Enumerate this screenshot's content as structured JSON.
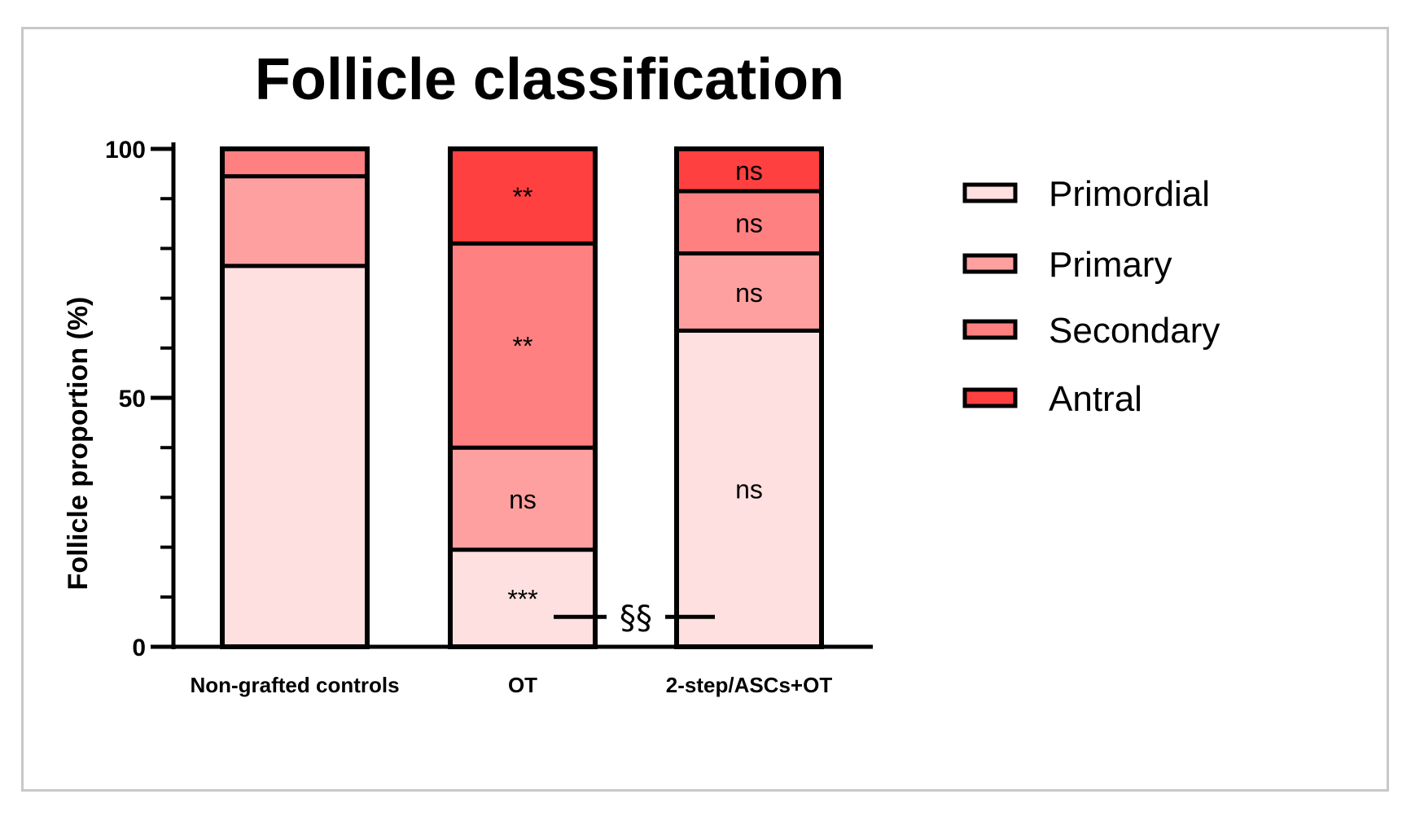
{
  "chart_data": {
    "type": "bar",
    "stacked": true,
    "title": "Follicle classification",
    "xlabel": "",
    "ylabel": "Follicle proportion (%)",
    "ylim": [
      0,
      100
    ],
    "yticks_major": [
      "0",
      "50",
      "100"
    ],
    "yticks_major_values": [
      0,
      50,
      100
    ],
    "yticks_minor_values": [
      10,
      20,
      30,
      40,
      60,
      70,
      80,
      90
    ],
    "grid": false,
    "legend_position": "right",
    "categories": [
      "Non-grafted controls",
      "OT",
      "2-step/ASCs+OT"
    ],
    "series": [
      {
        "name": "Primordial",
        "color": "#ffe0e0",
        "values": [
          76.5,
          19.5,
          63.5
        ],
        "annotations": [
          "",
          "***",
          "ns"
        ]
      },
      {
        "name": "Primary",
        "color": "#ffa0a0",
        "values": [
          18,
          20.5,
          15.5
        ],
        "annotations": [
          "",
          "ns",
          "ns"
        ]
      },
      {
        "name": "Secondary",
        "color": "#ff8080",
        "values": [
          5.5,
          41,
          12.5
        ],
        "annotations": [
          "",
          "**",
          "ns"
        ]
      },
      {
        "name": "Antral",
        "color": "#ff4040",
        "values": [
          0,
          19,
          8.5
        ],
        "annotations": [
          "",
          "**",
          "ns"
        ]
      }
    ],
    "comparison": {
      "label": "§§",
      "between": [
        "OT",
        "2-step/ASCs+OT"
      ],
      "at_y": 6
    }
  }
}
